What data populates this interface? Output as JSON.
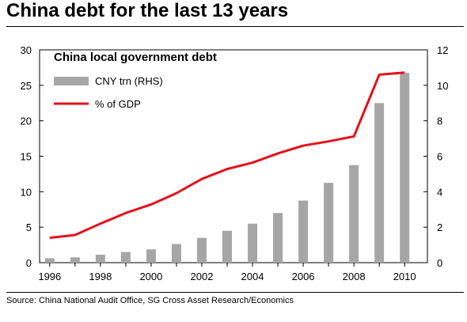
{
  "page": {
    "title": "China debt for the last 13 years",
    "source": "Source: China National Audit Office, SG Cross Asset Research/Economics"
  },
  "chart_data": {
    "type": "bar",
    "title": "China local government debt",
    "x": [
      1996,
      1997,
      1998,
      1999,
      2000,
      2001,
      2002,
      2003,
      2004,
      2005,
      2006,
      2007,
      2008,
      2009,
      2010
    ],
    "x_tick_labels": [
      "1996",
      "1998",
      "2000",
      "2002",
      "2004",
      "2006",
      "2008",
      "2010"
    ],
    "y_left": {
      "lim": [
        0,
        30
      ],
      "ticks": [
        "0",
        "5",
        "10",
        "15",
        "20",
        "25",
        "30"
      ]
    },
    "y_right": {
      "lim": [
        0,
        12
      ],
      "ticks": [
        "0",
        "2",
        "4",
        "6",
        "8",
        "10",
        "12"
      ]
    },
    "grid": false,
    "legend_position": "top-left",
    "series": [
      {
        "name": "CNY trn (RHS)",
        "kind": "bar",
        "axis": "right",
        "color": "#a6a6a6",
        "values": [
          0.25,
          0.3,
          0.45,
          0.6,
          0.75,
          1.05,
          1.4,
          1.8,
          2.2,
          2.8,
          3.5,
          4.5,
          5.5,
          9.0,
          10.7
        ]
      },
      {
        "name": "% of GDP",
        "kind": "line",
        "axis": "left",
        "color": "#e3121c",
        "values": [
          3.5,
          3.9,
          5.5,
          7.0,
          8.2,
          9.8,
          11.8,
          13.2,
          14.1,
          15.4,
          16.5,
          17.1,
          17.8,
          26.5,
          26.8
        ]
      }
    ]
  }
}
